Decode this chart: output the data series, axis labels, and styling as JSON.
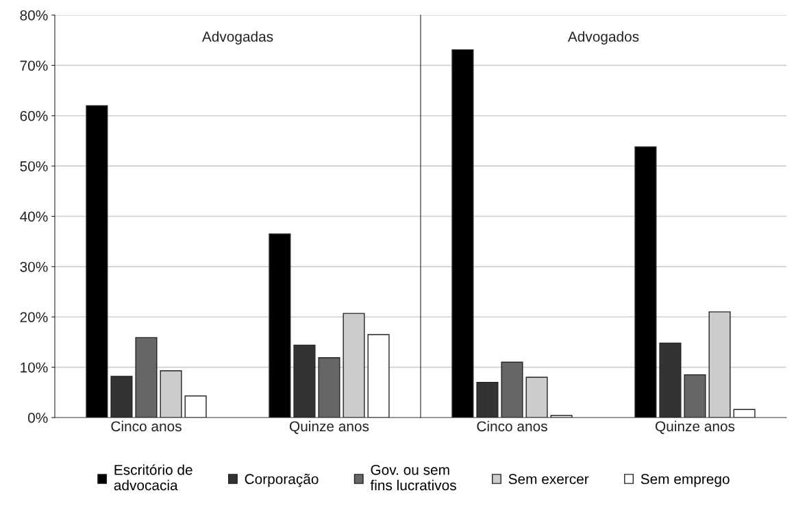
{
  "chart_data": [
    {
      "type": "bar",
      "title": "Advogadas",
      "categories": [
        "Cinco anos",
        "Quinze anos"
      ],
      "series": [
        {
          "name": "Escritório de\nadvocacia",
          "color": "#000000",
          "values": [
            62.0,
            36.5
          ]
        },
        {
          "name": "Corporação",
          "color": "#333333",
          "values": [
            8.2,
            14.4
          ]
        },
        {
          "name": "Gov. ou sem\nfins lucrativos",
          "color": "#666666",
          "values": [
            15.9,
            11.9
          ]
        },
        {
          "name": "Sem exercer",
          "color": "#cccccc",
          "values": [
            9.3,
            20.7
          ]
        },
        {
          "name": "Sem emprego",
          "color": "#ffffff",
          "values": [
            4.3,
            16.5
          ]
        }
      ],
      "ylim": [
        0,
        80
      ],
      "yticks": [
        {
          "value": 0,
          "label": "0%"
        },
        {
          "value": 10,
          "label": "10%"
        },
        {
          "value": 20,
          "label": "20%"
        },
        {
          "value": 30,
          "label": "30%"
        },
        {
          "value": 40,
          "label": "40%"
        },
        {
          "value": 50,
          "label": "50%"
        },
        {
          "value": 60,
          "label": "60%"
        },
        {
          "value": 70,
          "label": "70%"
        },
        {
          "value": 80,
          "label": "80%"
        }
      ],
      "grid": "y",
      "legend": "bottom"
    },
    {
      "type": "bar",
      "title": "Advogados",
      "categories": [
        "Cinco anos",
        "Quinze anos"
      ],
      "series": [
        {
          "color": "#000000",
          "values": [
            73.1,
            53.8
          ]
        },
        {
          "color": "#333333",
          "values": [
            7.0,
            14.8
          ]
        },
        {
          "color": "#666666",
          "values": [
            11.0,
            8.5
          ]
        },
        {
          "color": "#cccccc",
          "values": [
            8.0,
            21.0
          ]
        },
        {
          "color": "#ffffff",
          "values": [
            0.4,
            1.6
          ]
        }
      ],
      "ylim": [
        0,
        80
      ],
      "yticks": [
        0,
        10,
        20,
        30,
        40,
        50,
        60,
        70,
        80
      ],
      "grid": "y",
      "tick_labels": "x"
    }
  ]
}
